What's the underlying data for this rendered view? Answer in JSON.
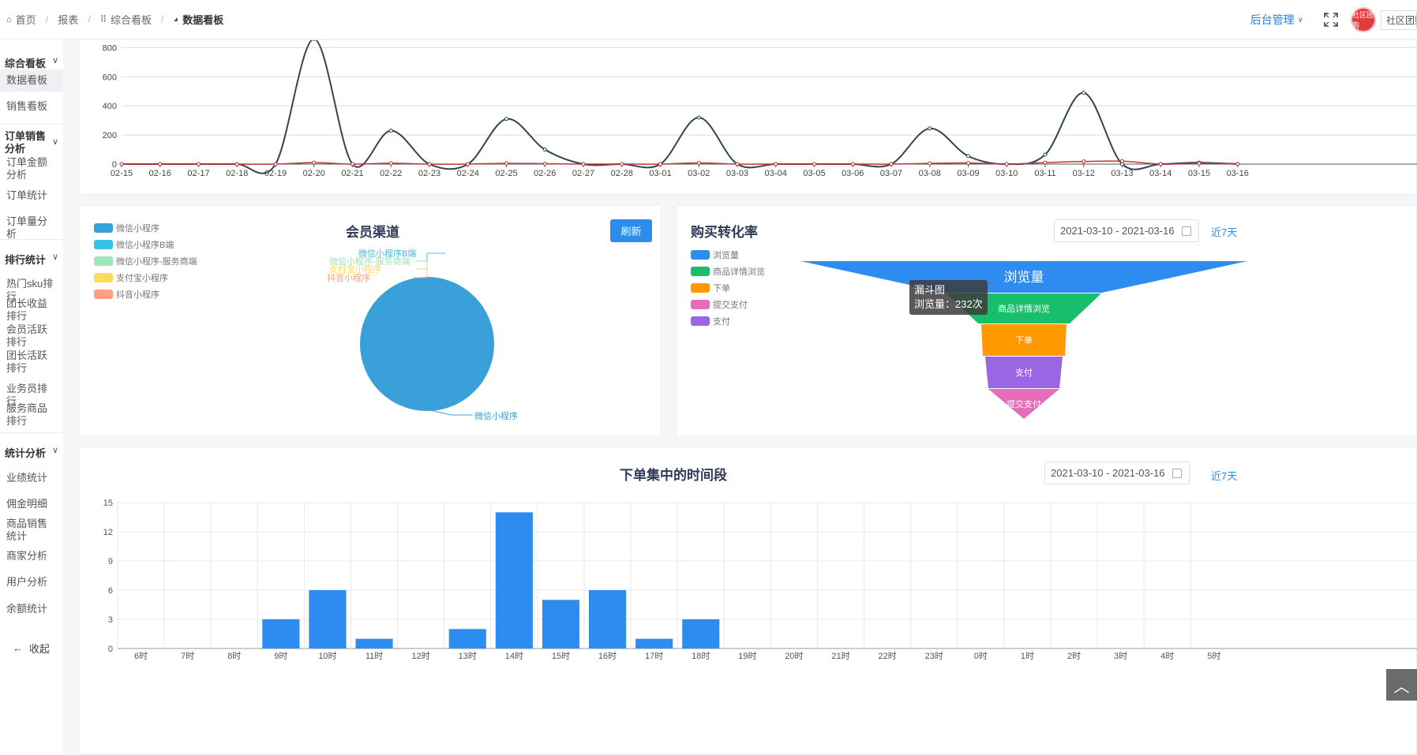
{
  "breadcrumb": {
    "items": [
      {
        "label": "首页",
        "icon": "home-icon"
      },
      {
        "label": "报表",
        "icon": ""
      },
      {
        "label": "综合看板",
        "icon": "grid-icon"
      },
      {
        "label": "数据看板",
        "icon": "pie-icon"
      }
    ]
  },
  "header": {
    "admin_label": "后台管理",
    "shop_name": "社区团购",
    "avatar_text": "社区团购"
  },
  "sidebar": {
    "groups": [
      {
        "label": "综合看板",
        "items": [
          "数据看板",
          "销售看板"
        ]
      },
      {
        "label": "订单销售分析",
        "items": [
          "订单金额分析",
          "订单统计",
          "订单量分析"
        ]
      },
      {
        "label": "排行统计",
        "items": [
          "热门sku排行",
          "团长收益排行",
          "会员活跃排行",
          "团长活跃排行",
          "业务员排行",
          "服务商品排行"
        ]
      },
      {
        "label": "统计分析",
        "items": [
          "业绩统计",
          "佣金明细",
          "商品销售统计",
          "商家分析",
          "用户分析",
          "余额统计"
        ]
      }
    ],
    "collapse_label": "收起"
  },
  "member_channel": {
    "title": "会员渠道",
    "refresh_label": "刷新",
    "legend": [
      "微信小程序",
      "微信小程序B端",
      "微信小程序-服务商端",
      "支付宝小程序",
      "抖音小程序"
    ]
  },
  "conversion": {
    "title": "购买转化率",
    "date_range": "2021-03-10 - 2021-03-16",
    "recent_label": "近7天",
    "legend": [
      "浏览量",
      "商品详情浏览",
      "下单",
      "提交支付",
      "支付"
    ],
    "tooltip_title": "漏斗图",
    "tooltip_value": "浏览量：232次"
  },
  "order_time": {
    "title": "下单集中的时间段",
    "date_range": "2021-03-10 - 2021-03-16",
    "recent_label": "近7天"
  },
  "colors": {
    "primary": "#2d8cf0",
    "line_dark": "#2f4554",
    "line_red": "#c23531",
    "bar_blue": "#2d8cf0",
    "pie_blue": "#3aa0da"
  },
  "chart_data": [
    {
      "type": "line",
      "x": [
        "02-15",
        "02-16",
        "02-17",
        "02-18",
        "02-19",
        "02-20",
        "02-21",
        "02-22",
        "02-23",
        "02-24",
        "02-25",
        "02-26",
        "02-27",
        "02-28",
        "03-01",
        "03-02",
        "03-03",
        "03-04",
        "03-05",
        "03-06",
        "03-07",
        "03-08",
        "03-09",
        "03-10",
        "03-11",
        "03-12",
        "03-13",
        "03-14",
        "03-15",
        "03-16"
      ],
      "series": [
        {
          "values": [
            0,
            0,
            0,
            0,
            0,
            860,
            0,
            230,
            0,
            0,
            310,
            100,
            0,
            0,
            0,
            320,
            0,
            0,
            0,
            0,
            0,
            245,
            55,
            0,
            65,
            490,
            0,
            0,
            10,
            0
          ]
        },
        {
          "values": [
            0,
            0,
            0,
            0,
            0,
            10,
            0,
            6,
            0,
            0,
            5,
            3,
            0,
            0,
            0,
            8,
            0,
            0,
            0,
            0,
            0,
            5,
            8,
            0,
            10,
            18,
            20,
            0,
            5,
            0
          ]
        }
      ],
      "yticks": [
        0,
        200,
        400,
        600,
        800
      ],
      "ylim": [
        0,
        860
      ]
    },
    {
      "type": "pie",
      "categories": [
        "微信小程序",
        "微信小程序B端",
        "微信小程序-服务商端",
        "支付宝小程序",
        "抖音小程序"
      ],
      "values": [
        100,
        0,
        0,
        0,
        0
      ]
    },
    {
      "type": "funnel",
      "categories": [
        "浏览量",
        "商品详情浏览",
        "下单",
        "支付",
        "提交支付"
      ],
      "values": [
        232,
        148,
        94,
        90,
        70
      ]
    },
    {
      "type": "bar",
      "categories": [
        "6时",
        "7时",
        "8时",
        "9时",
        "10时",
        "11时",
        "12时",
        "13时",
        "14时",
        "15时",
        "16时",
        "17时",
        "18时",
        "19时",
        "20时",
        "21时",
        "22时",
        "23时",
        "0时",
        "1时",
        "2时",
        "3时",
        "4时",
        "5时"
      ],
      "values": [
        0,
        0,
        0,
        3,
        6,
        1,
        0,
        2,
        14,
        5,
        6,
        1,
        3,
        0,
        0,
        0,
        0,
        0,
        0,
        0,
        0,
        0,
        0,
        0
      ],
      "yticks": [
        0,
        3,
        6,
        9,
        12,
        15
      ],
      "ylim": [
        0,
        15
      ]
    }
  ]
}
